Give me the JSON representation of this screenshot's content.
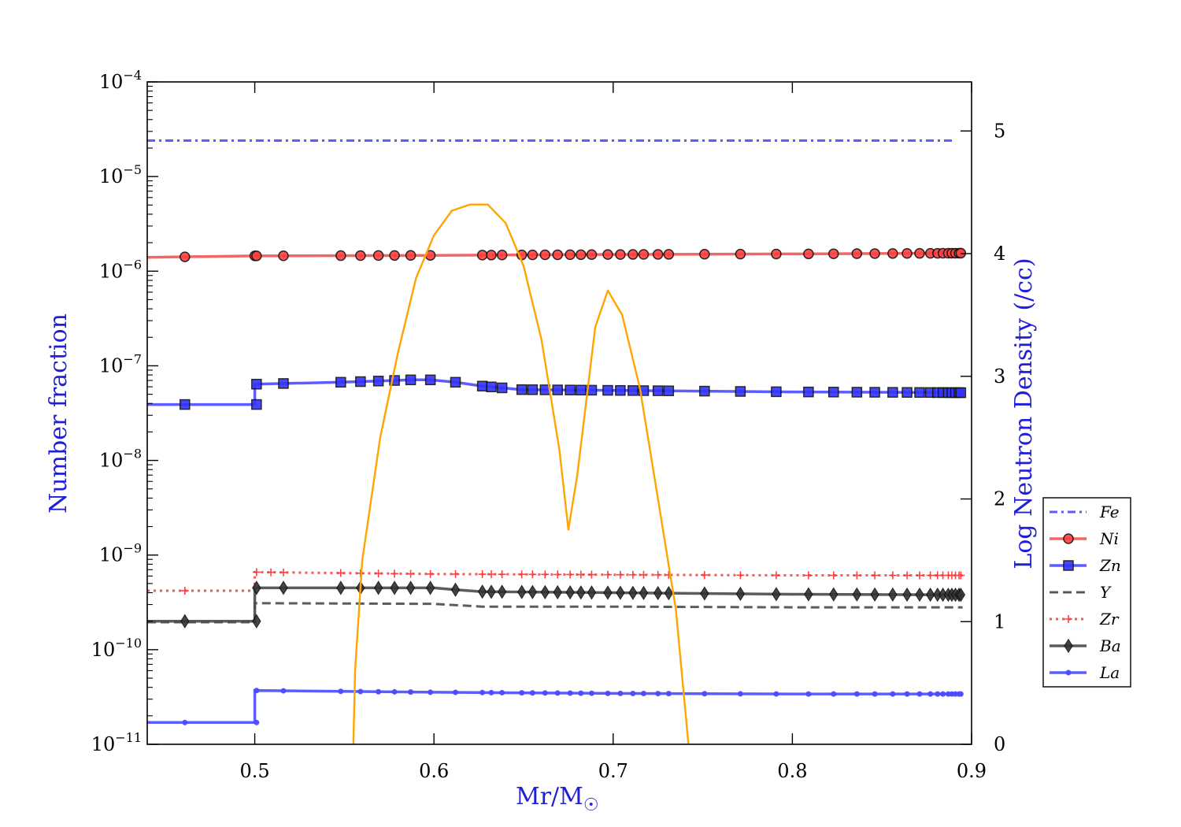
{
  "chart_data": {
    "type": "line",
    "title": "",
    "xlabel": "Mr/M",
    "xlabel_symbol": "☉",
    "ylabel_left": "Number fraction",
    "ylabel_right": "Log Neutron Density (/cc)",
    "xlim": [
      0.44,
      0.9
    ],
    "ylim_left": [
      1e-11,
      0.0001
    ],
    "ylim_right": [
      0,
      5.4
    ],
    "left_scale": "log",
    "right_scale": "linear",
    "grid": false,
    "legend_position": "right-middle",
    "x_ticks": [
      {
        "v": 0.5,
        "label": "0.5"
      },
      {
        "v": 0.6,
        "label": "0.6"
      },
      {
        "v": 0.7,
        "label": "0.7"
      },
      {
        "v": 0.8,
        "label": "0.8"
      },
      {
        "v": 0.9,
        "label": "0.9"
      }
    ],
    "left_ticks": [
      {
        "exp": -4,
        "base": "10",
        "sup": "−4"
      },
      {
        "exp": -5,
        "base": "10",
        "sup": "−5"
      },
      {
        "exp": -6,
        "base": "10",
        "sup": "−6"
      },
      {
        "exp": -7,
        "base": "10",
        "sup": "−7"
      },
      {
        "exp": -8,
        "base": "10",
        "sup": "−8"
      },
      {
        "exp": -9,
        "base": "10",
        "sup": "−9"
      },
      {
        "exp": -10,
        "base": "10",
        "sup": "−10"
      },
      {
        "exp": -11,
        "base": "10",
        "sup": "−11"
      }
    ],
    "right_ticks": [
      {
        "v": 0,
        "label": "0"
      },
      {
        "v": 1,
        "label": "1"
      },
      {
        "v": 2,
        "label": "2"
      },
      {
        "v": 3,
        "label": "3"
      },
      {
        "v": 4,
        "label": "4"
      },
      {
        "v": 5,
        "label": "5"
      }
    ],
    "colors": {
      "fe": "#4b4bff",
      "ni_line": "#f25555",
      "ni_marker": "#ff4040",
      "zn_line": "#4b4bff",
      "zn_marker": "#3333ff",
      "y": "#4a4a4a",
      "zr": "#ff4040",
      "ba": "#4a4a4a",
      "ba_marker": "#333333",
      "la": "#4b4bff",
      "neutron": "#ffa500"
    },
    "series": [
      {
        "name": "Fe",
        "style": "dashdot",
        "marker": "none",
        "points": [
          [
            0.44,
            2.4e-05
          ],
          [
            0.89,
            2.4e-05
          ]
        ]
      },
      {
        "name": "Ni",
        "style": "solid",
        "marker": "circle",
        "points": [
          [
            0.44,
            1.4e-06
          ],
          [
            0.5,
            1.45e-06
          ],
          [
            0.5,
            1.45e-06
          ],
          [
            0.6,
            1.47e-06
          ],
          [
            0.7,
            1.5e-06
          ],
          [
            0.8,
            1.52e-06
          ],
          [
            0.895,
            1.55e-06
          ]
        ],
        "marker_x": [
          0.461,
          0.5,
          0.501,
          0.516,
          0.548,
          0.559,
          0.569,
          0.578,
          0.587,
          0.598,
          0.627,
          0.632,
          0.638,
          0.649,
          0.655,
          0.662,
          0.669,
          0.676,
          0.682,
          0.688,
          0.697,
          0.704,
          0.711,
          0.717,
          0.725,
          0.731,
          0.751,
          0.771,
          0.791,
          0.809,
          0.823,
          0.836,
          0.846,
          0.856,
          0.864,
          0.871,
          0.877,
          0.881,
          0.884,
          0.887,
          0.889,
          0.891,
          0.893,
          0.894
        ]
      },
      {
        "name": "Zn",
        "style": "solid",
        "marker": "square",
        "points": [
          [
            0.44,
            3.9e-08
          ],
          [
            0.5,
            3.9e-08
          ],
          [
            0.5,
            6.4e-08
          ],
          [
            0.516,
            6.5e-08
          ],
          [
            0.548,
            6.7e-08
          ],
          [
            0.569,
            6.9e-08
          ],
          [
            0.587,
            7.1e-08
          ],
          [
            0.598,
            7.1e-08
          ],
          [
            0.612,
            6.7e-08
          ],
          [
            0.627,
            6.1e-08
          ],
          [
            0.649,
            5.6e-08
          ],
          [
            0.7,
            5.5e-08
          ],
          [
            0.75,
            5.4e-08
          ],
          [
            0.8,
            5.3e-08
          ],
          [
            0.895,
            5.2e-08
          ]
        ],
        "marker_x": [
          0.461,
          0.501,
          0.501,
          0.516,
          0.548,
          0.559,
          0.569,
          0.578,
          0.587,
          0.598,
          0.612,
          0.627,
          0.632,
          0.638,
          0.649,
          0.655,
          0.662,
          0.669,
          0.676,
          0.682,
          0.688,
          0.697,
          0.704,
          0.711,
          0.717,
          0.725,
          0.731,
          0.751,
          0.771,
          0.791,
          0.809,
          0.823,
          0.836,
          0.846,
          0.856,
          0.864,
          0.871,
          0.877,
          0.881,
          0.884,
          0.887,
          0.889,
          0.891,
          0.893,
          0.894
        ]
      },
      {
        "name": "Y",
        "style": "dashed",
        "marker": "none",
        "points": [
          [
            0.44,
            1.95e-10
          ],
          [
            0.5,
            1.95e-10
          ],
          [
            0.5,
            3.1e-10
          ],
          [
            0.6,
            3.05e-10
          ],
          [
            0.627,
            2.85e-10
          ],
          [
            0.7,
            2.85e-10
          ],
          [
            0.8,
            2.8e-10
          ],
          [
            0.895,
            2.8e-10
          ]
        ]
      },
      {
        "name": "Zr",
        "style": "dotted",
        "marker": "plus",
        "points": [
          [
            0.44,
            4.2e-10
          ],
          [
            0.5,
            4.2e-10
          ],
          [
            0.5,
            6.6e-10
          ],
          [
            0.6,
            6.3e-10
          ],
          [
            0.7,
            6.2e-10
          ],
          [
            0.8,
            6.1e-10
          ],
          [
            0.895,
            6.1e-10
          ]
        ],
        "marker_x": [
          0.461,
          0.501,
          0.509,
          0.516,
          0.548,
          0.559,
          0.569,
          0.578,
          0.587,
          0.598,
          0.612,
          0.627,
          0.632,
          0.638,
          0.649,
          0.655,
          0.662,
          0.669,
          0.676,
          0.682,
          0.688,
          0.697,
          0.704,
          0.711,
          0.717,
          0.725,
          0.731,
          0.751,
          0.771,
          0.791,
          0.809,
          0.823,
          0.836,
          0.846,
          0.856,
          0.864,
          0.871,
          0.877,
          0.881,
          0.884,
          0.887,
          0.889,
          0.891,
          0.893,
          0.894
        ]
      },
      {
        "name": "Ba",
        "style": "solid",
        "marker": "diamond",
        "points": [
          [
            0.44,
            2e-10
          ],
          [
            0.5,
            2e-10
          ],
          [
            0.5,
            4.5e-10
          ],
          [
            0.6,
            4.5e-10
          ],
          [
            0.612,
            4.3e-10
          ],
          [
            0.627,
            4.1e-10
          ],
          [
            0.7,
            4e-10
          ],
          [
            0.8,
            3.85e-10
          ],
          [
            0.895,
            3.8e-10
          ]
        ],
        "marker_x": [
          0.461,
          0.501,
          0.501,
          0.516,
          0.548,
          0.559,
          0.569,
          0.578,
          0.587,
          0.598,
          0.612,
          0.627,
          0.632,
          0.638,
          0.649,
          0.655,
          0.662,
          0.669,
          0.676,
          0.682,
          0.688,
          0.697,
          0.704,
          0.711,
          0.717,
          0.725,
          0.731,
          0.751,
          0.771,
          0.791,
          0.809,
          0.823,
          0.836,
          0.846,
          0.856,
          0.864,
          0.871,
          0.877,
          0.881,
          0.884,
          0.887,
          0.889,
          0.891,
          0.893,
          0.894
        ]
      },
      {
        "name": "La",
        "style": "solid",
        "marker": "dot",
        "points": [
          [
            0.44,
            1.7e-11
          ],
          [
            0.5,
            1.7e-11
          ],
          [
            0.5,
            3.7e-11
          ],
          [
            0.6,
            3.55e-11
          ],
          [
            0.7,
            3.45e-11
          ],
          [
            0.8,
            3.4e-11
          ],
          [
            0.895,
            3.4e-11
          ]
        ],
        "marker_x": [
          0.461,
          0.501,
          0.501,
          0.516,
          0.548,
          0.559,
          0.569,
          0.578,
          0.587,
          0.598,
          0.612,
          0.627,
          0.632,
          0.638,
          0.649,
          0.655,
          0.662,
          0.669,
          0.676,
          0.682,
          0.688,
          0.697,
          0.704,
          0.711,
          0.717,
          0.725,
          0.731,
          0.751,
          0.771,
          0.791,
          0.809,
          0.823,
          0.836,
          0.846,
          0.856,
          0.864,
          0.871,
          0.877,
          0.881,
          0.884,
          0.887,
          0.889,
          0.891,
          0.893,
          0.894
        ]
      }
    ],
    "neutron_density": {
      "axis": "right",
      "points": [
        [
          0.555,
          0.0
        ],
        [
          0.556,
          0.6
        ],
        [
          0.56,
          1.5
        ],
        [
          0.57,
          2.5
        ],
        [
          0.58,
          3.2
        ],
        [
          0.59,
          3.8
        ],
        [
          0.6,
          4.15
        ],
        [
          0.61,
          4.35
        ],
        [
          0.62,
          4.4
        ],
        [
          0.63,
          4.4
        ],
        [
          0.64,
          4.25
        ],
        [
          0.65,
          3.9
        ],
        [
          0.66,
          3.3
        ],
        [
          0.67,
          2.4
        ],
        [
          0.675,
          1.75
        ],
        [
          0.68,
          2.2
        ],
        [
          0.69,
          3.4
        ],
        [
          0.697,
          3.7
        ],
        [
          0.705,
          3.5
        ],
        [
          0.715,
          2.9
        ],
        [
          0.725,
          2.0
        ],
        [
          0.735,
          1.1
        ],
        [
          0.742,
          0.0
        ]
      ]
    }
  }
}
